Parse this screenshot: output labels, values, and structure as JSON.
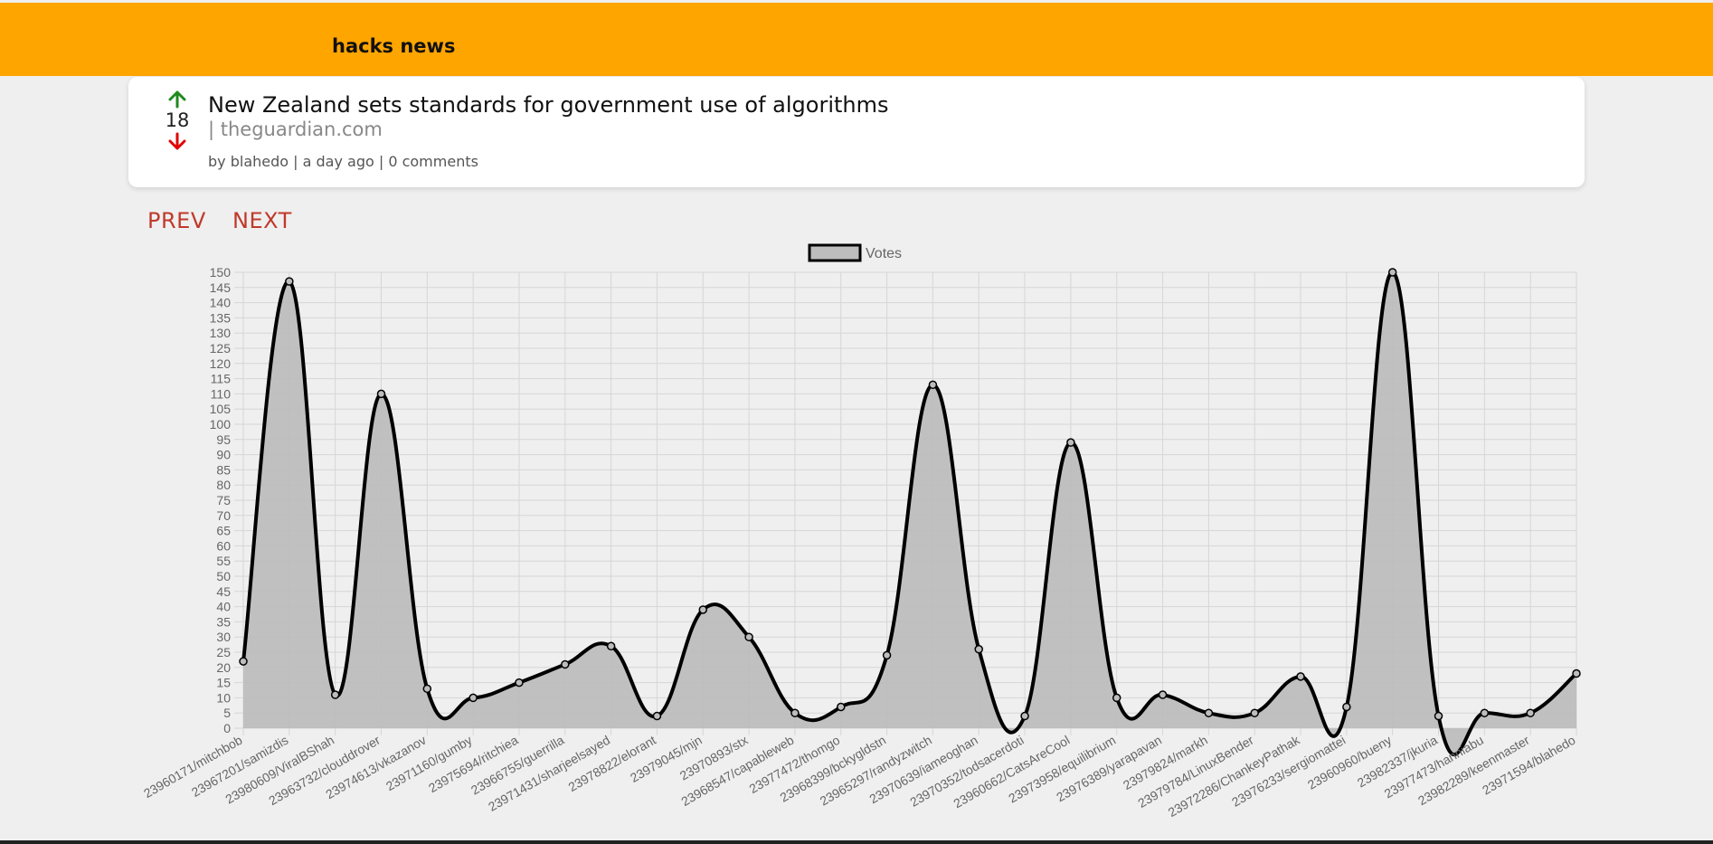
{
  "header": {
    "brand": "hacks news",
    "background": "#ffa500"
  },
  "story": {
    "score": "18",
    "title": "New Zealand sets standards for government use of algorithms",
    "domain": "| theguardian.com",
    "meta": "by blahedo | a day ago | 0 comments",
    "upvote_color": "#1e8a1e",
    "downvote_color": "#e00000"
  },
  "pager": {
    "prev": "PREV",
    "next": "NEXT"
  },
  "chart_data": {
    "type": "area",
    "legend": "Votes",
    "legend_placement": "top",
    "grid": true,
    "ylim": [
      0,
      150
    ],
    "ystep": 5,
    "fill": "#bdbdbd",
    "stroke": "#000000",
    "categories": [
      "23960171/mitchbob",
      "23967201/samizdis",
      "23980609/ViralBShah",
      "23963732/clouddrover",
      "23974613/vkazanov",
      "23971160/gumby",
      "23975694/ritchiea",
      "23966755/guerrilla",
      "23971431/sharjeelsayed",
      "23978822/elorant",
      "23979045/mjn",
      "23970893/stx",
      "23968547/capableweb",
      "23977472/thomgo",
      "23968399/bckygldstn",
      "23965297/randyzwitch",
      "23970639/iameoghan",
      "23970352/todsacerdoti",
      "23960662/CatsAreCool",
      "23973958/equilibrium",
      "23976389/yarapavan",
      "23979824/markh",
      "23979784/LinuxBender",
      "23972286/ChankeyPathak",
      "23976233/sergiomattei",
      "23960960/bueny",
      "23982337/jkuria",
      "23977473/hanniabu",
      "23982289/keenmaster",
      "23971594/blahedo"
    ],
    "values": [
      22,
      147,
      11,
      110,
      13,
      10,
      15,
      21,
      27,
      4,
      39,
      30,
      5,
      7,
      24,
      113,
      26,
      4,
      94,
      10,
      11,
      5,
      5,
      17,
      7,
      150,
      4,
      5,
      5,
      18
    ]
  }
}
